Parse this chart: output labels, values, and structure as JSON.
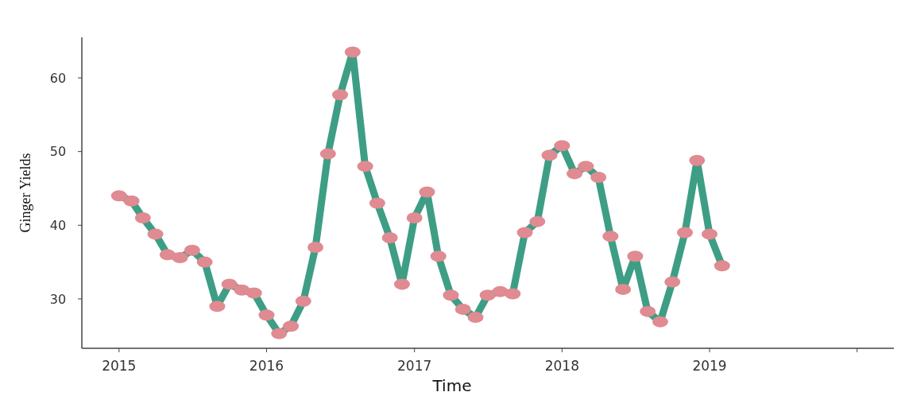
{
  "chart_data": {
    "type": "line",
    "xlabel": "Time",
    "ylabel": "Ginger Yields",
    "x": [
      "2015-01",
      "2015-02",
      "2015-03",
      "2015-04",
      "2015-05",
      "2015-06",
      "2015-07",
      "2015-08",
      "2015-09",
      "2015-10",
      "2015-11",
      "2015-12",
      "2016-01",
      "2016-02",
      "2016-03",
      "2016-04",
      "2016-05",
      "2016-06",
      "2016-07",
      "2016-08",
      "2016-09",
      "2016-10",
      "2016-11",
      "2016-12",
      "2017-01",
      "2017-02",
      "2017-03",
      "2017-04",
      "2017-05",
      "2017-06",
      "2017-07",
      "2017-08",
      "2017-09",
      "2017-10",
      "2017-11",
      "2017-12",
      "2018-01",
      "2018-02",
      "2018-03",
      "2018-04",
      "2018-05",
      "2018-06",
      "2018-07",
      "2018-08",
      "2018-09",
      "2018-10",
      "2018-11",
      "2018-12",
      "2019-01",
      "2019-02"
    ],
    "series": [
      {
        "color": "#3d9e85",
        "values": [
          44,
          43.3,
          41,
          38.8,
          36,
          35.6,
          36.6,
          35,
          29,
          32,
          31.2,
          30.8,
          27.8,
          25.3,
          26.3,
          29.7,
          37,
          49.7,
          57.7,
          63.5,
          48,
          43,
          38.3,
          32,
          41,
          44.5,
          35.8,
          30.5,
          28.6,
          27.5,
          30.5,
          31,
          30.7,
          39,
          40.5,
          49.5,
          50.8,
          47,
          48,
          46.5,
          38.5,
          31.3,
          35.8,
          28.3,
          26.9,
          32.3,
          39,
          48.8,
          38.8,
          34.5
        ]
      }
    ],
    "marker": "circle",
    "xlim": [
      "2014-10",
      "2020-04"
    ],
    "xticks": [
      {
        "value": "2015",
        "label": "2015"
      },
      {
        "value": "2016",
        "label": "2016"
      },
      {
        "value": "2017",
        "label": "2017"
      },
      {
        "value": "2018",
        "label": "2018"
      },
      {
        "value": "2019",
        "label": "2019"
      },
      {
        "value": "2020",
        "label": null
      }
    ],
    "ylim": [
      23.3,
      65.5
    ],
    "yticks": [
      30,
      40,
      50,
      60
    ],
    "grid": false
  }
}
